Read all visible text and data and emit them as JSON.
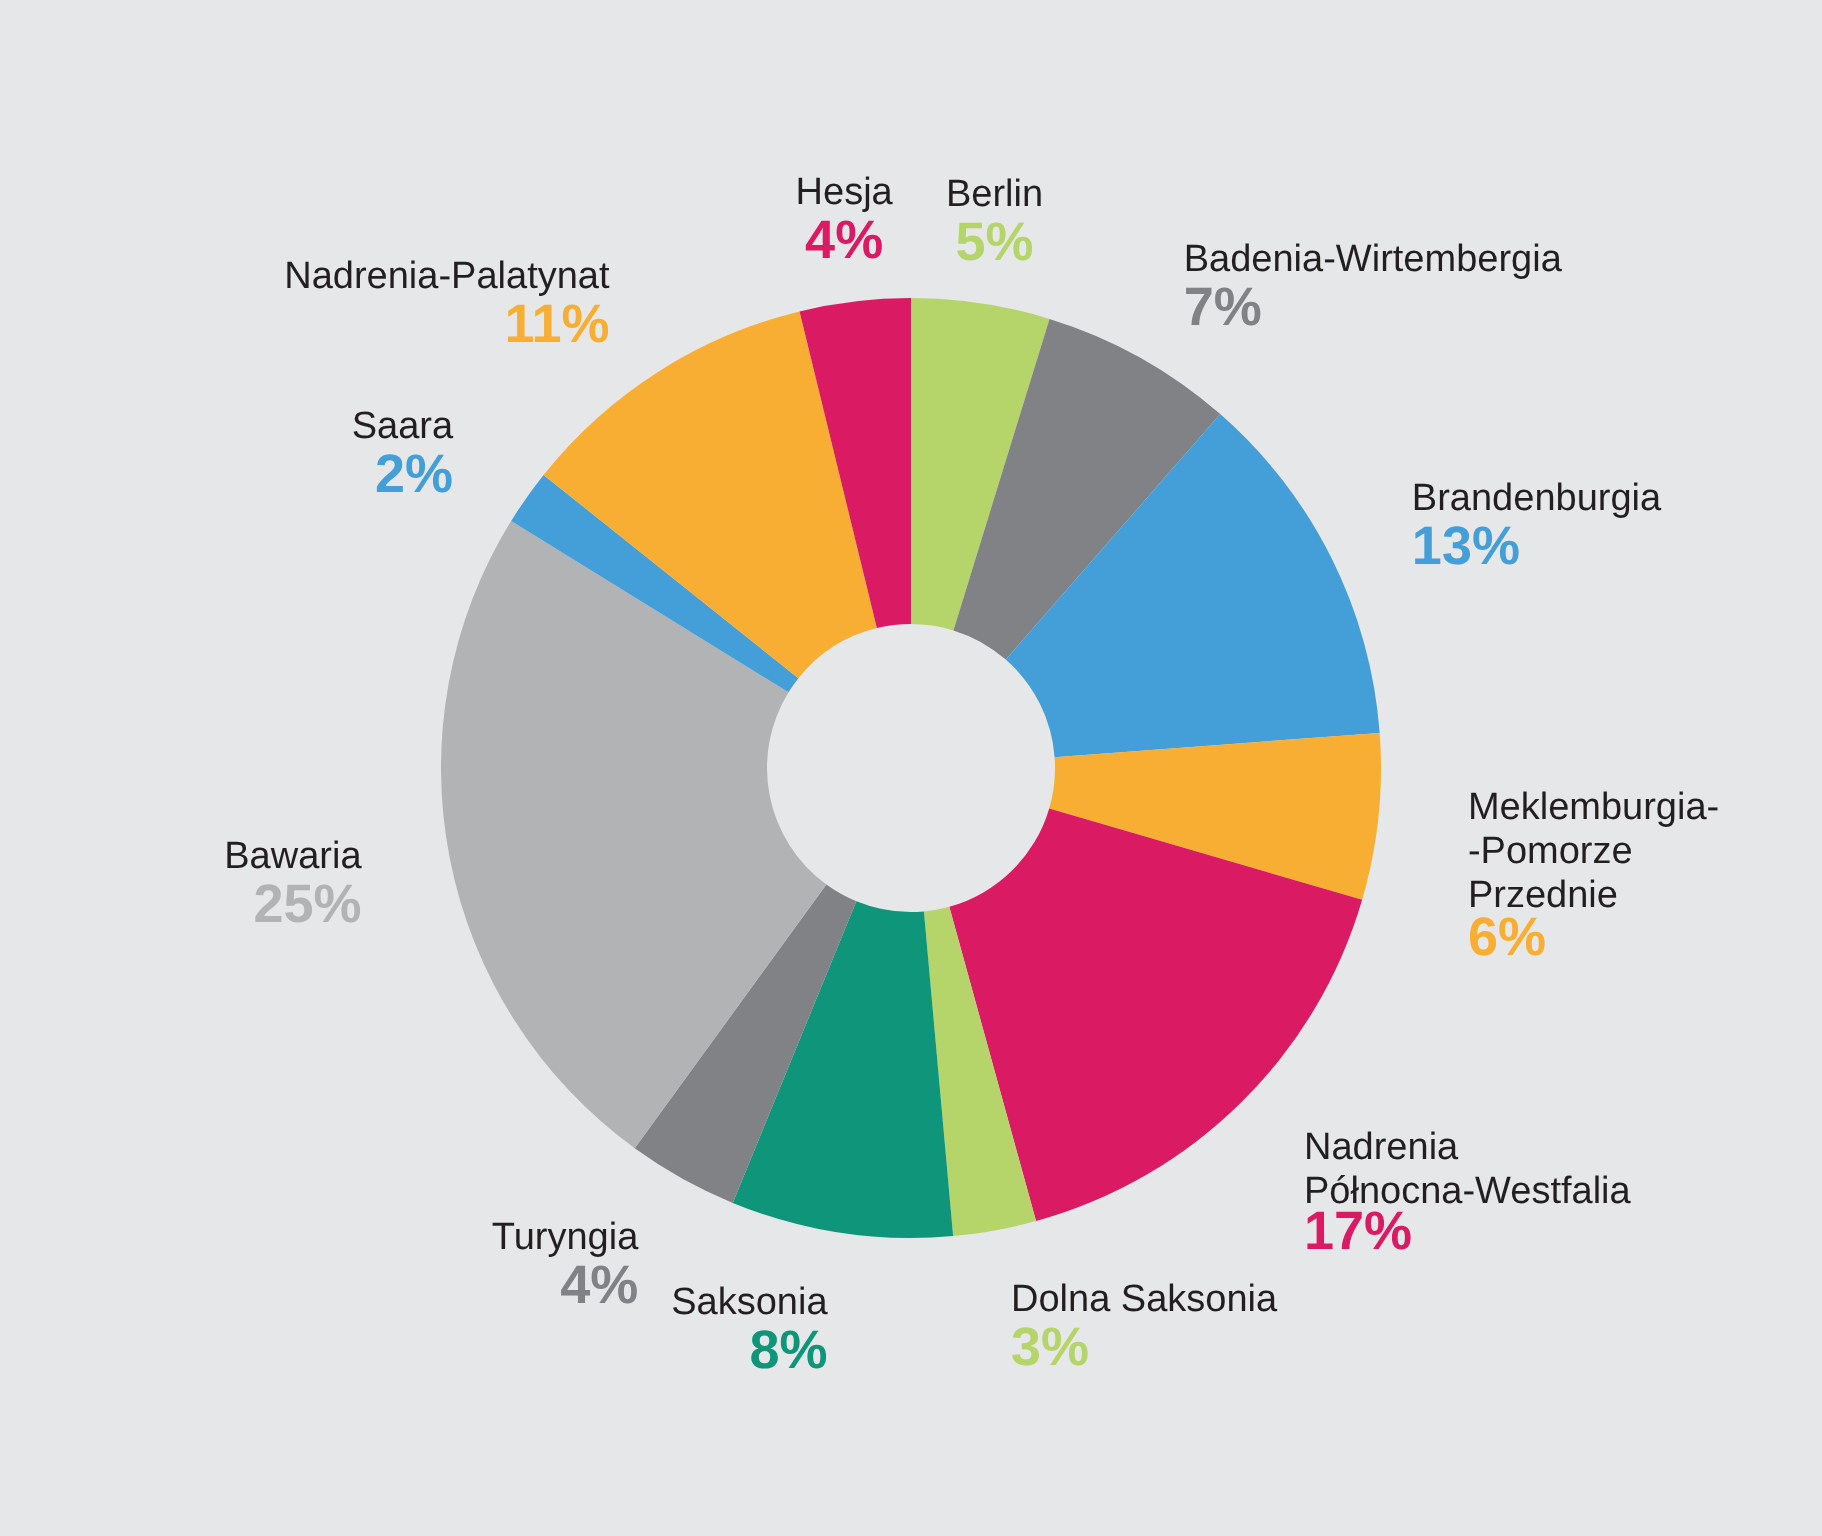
{
  "chart_data": {
    "type": "donut",
    "categories": [
      "Berlin",
      "Badenia-Wirtembergia",
      "Brandenburgia",
      "Meklemburgia-\n-Pomorze\nPrzednie",
      "Nadrenia\nPółnocna-Westfalia",
      "Dolna Saksonia",
      "Saksonia",
      "Turyngia",
      "Bawaria",
      "Saara",
      "Nadrenia-Palatynat",
      "Hesja"
    ],
    "values": [
      5,
      7,
      13,
      6,
      17,
      3,
      8,
      4,
      25,
      2,
      11,
      4
    ],
    "value_labels": [
      "5%",
      "7%",
      "13%",
      "6%",
      "17%",
      "3%",
      "8%",
      "4%",
      "25%",
      "2%",
      "11%",
      "4%"
    ],
    "colors": [
      "#b5d56a",
      "#808285",
      "#449fd8",
      "#f8ae32",
      "#da1a62",
      "#b5d56a",
      "#0e957a",
      "#808285",
      "#b1b3b5",
      "#449fd8",
      "#f8ae32",
      "#da1a62"
    ]
  }
}
